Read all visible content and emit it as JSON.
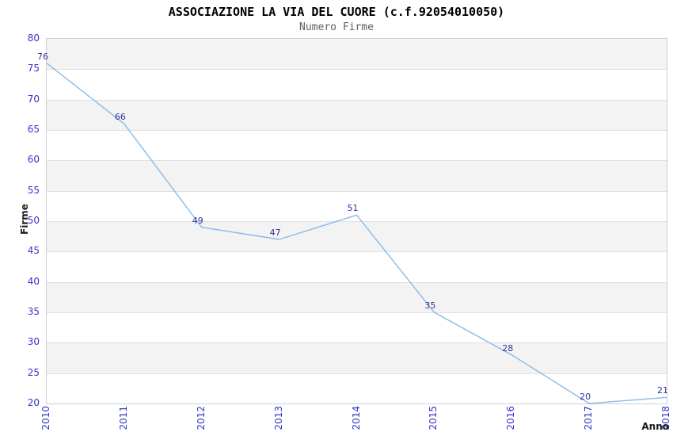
{
  "chart_data": {
    "type": "line",
    "title": "ASSOCIAZIONE LA VIA DEL CUORE (c.f.92054010050)",
    "subtitle": "Numero Firme",
    "xlabel": "Anno",
    "ylabel": "Firme",
    "x": [
      2010,
      2011,
      2012,
      2013,
      2014,
      2015,
      2016,
      2017,
      2018
    ],
    "series": [
      {
        "name": "Numero Firme",
        "values": [
          76,
          66,
          49,
          47,
          51,
          35,
          28,
          20,
          21
        ]
      }
    ],
    "ylim": [
      20,
      80
    ],
    "ytick_step": 5,
    "yticks": [
      20,
      25,
      30,
      35,
      40,
      45,
      50,
      55,
      60,
      65,
      70,
      75,
      80
    ],
    "grid": "horizontal-bands-alternating",
    "legend_position": "none",
    "markers": "none",
    "data_labels_visible": true,
    "colors": {
      "line": "#88bbe8",
      "tick_label": "#3333cc",
      "data_label": "#333399",
      "band_gray": "#f3f3f3",
      "band_white": "#ffffff",
      "gridline": "#e0e0e0",
      "plot_border": "#d0d0d0",
      "title": "#000000",
      "subtitle": "#606060",
      "axis_label": "#1a1a1a",
      "background": "#ffffff"
    }
  }
}
